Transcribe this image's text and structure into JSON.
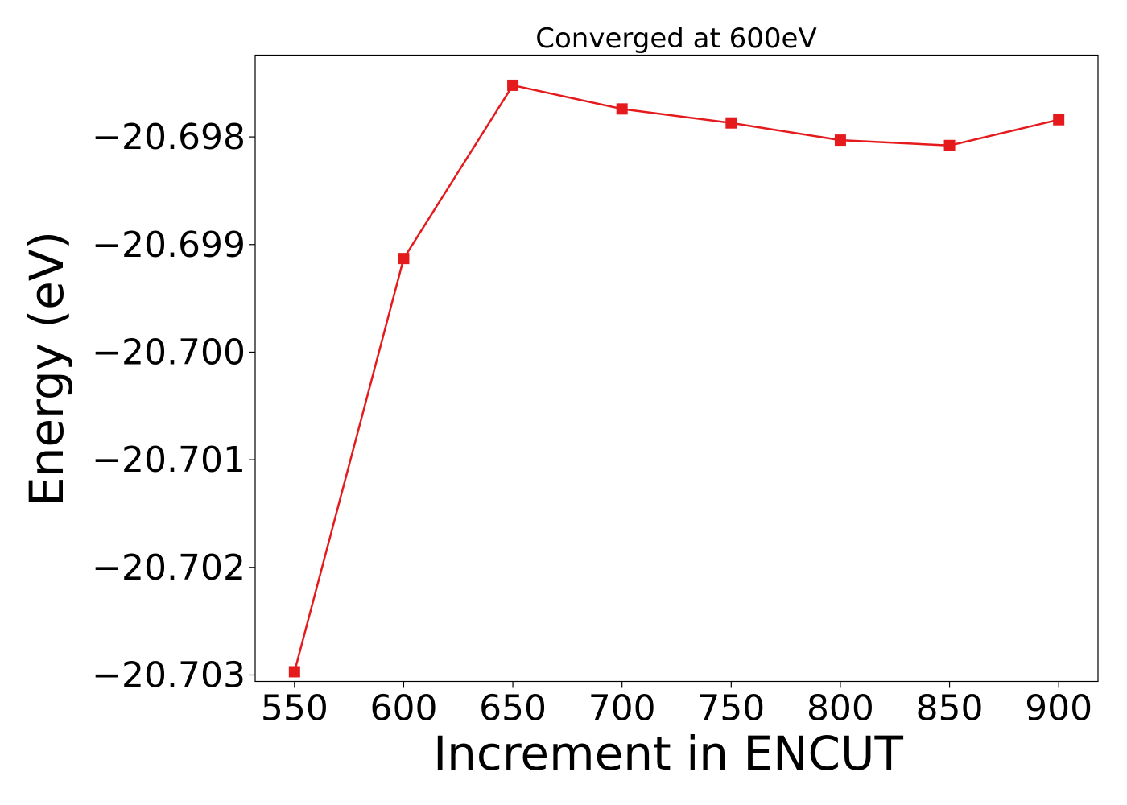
{
  "chart_data": {
    "type": "line",
    "title": "Converged at 600eV",
    "xlabel": "Increment in ENCUT",
    "ylabel": "Energy (eV)",
    "x": [
      550,
      600,
      650,
      700,
      750,
      800,
      850,
      900
    ],
    "series": [
      {
        "values": [
          -20.70297,
          -20.69913,
          -20.69752,
          -20.69774,
          -20.69787,
          -20.69803,
          -20.69808,
          -20.69784
        ],
        "color": "#e41a1c",
        "marker": "square"
      }
    ],
    "xlim": [
      532,
      918
    ],
    "ylim": [
      -20.70306,
      -20.69724
    ],
    "xticks": [
      550,
      600,
      650,
      700,
      750,
      800,
      850,
      900
    ],
    "xtick_labels": [
      "550",
      "600",
      "650",
      "700",
      "750",
      "800",
      "850",
      "900"
    ],
    "yticks": [
      -20.698,
      -20.699,
      -20.7,
      -20.701,
      -20.702,
      -20.703
    ],
    "ytick_labels": [
      "−20.698",
      "−20.699",
      "−20.700",
      "−20.701",
      "−20.702",
      "−20.703"
    ],
    "grid": false,
    "legend": "none"
  }
}
